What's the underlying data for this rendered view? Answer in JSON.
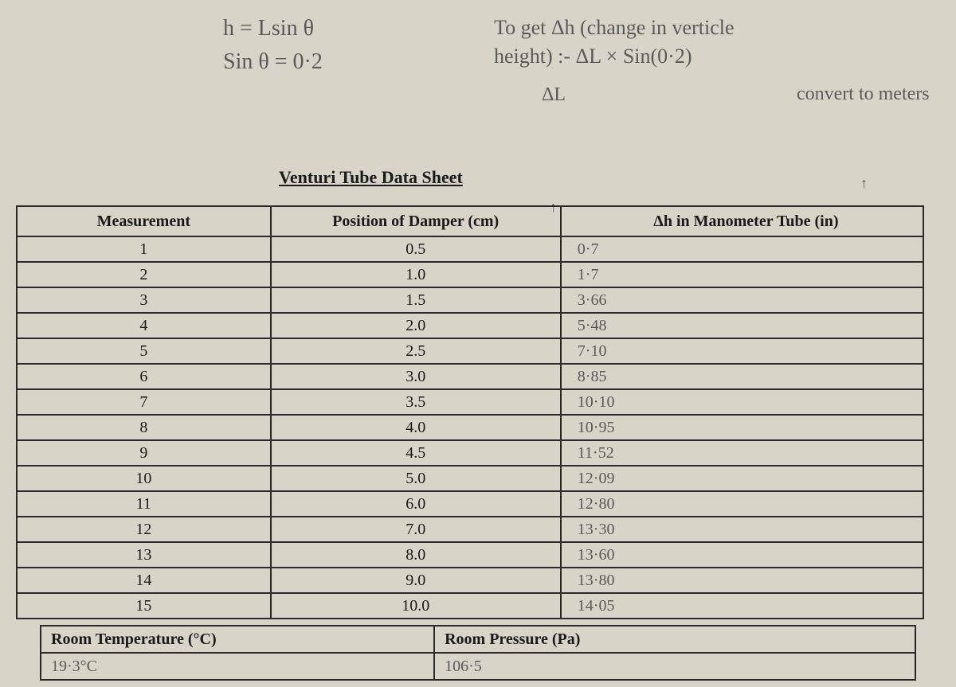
{
  "notes": {
    "top_left_1": "h = Lsin θ",
    "top_left_2": "Sin θ = 0·2",
    "top_right_1": "To get Δh (change in verticle",
    "top_right_2": "height) :- ΔL × Sin(0·2)",
    "top_right_3": "ΔL",
    "top_right_4": "convert to meters",
    "arrow_1": "↑",
    "arrow_2": "↑"
  },
  "title": "Venturi Tube Data Sheet",
  "table": {
    "headers": {
      "col1": "Measurement",
      "col2": "Position of Damper (cm)",
      "col3": "Δh in Manometer Tube (in)"
    },
    "rows": [
      {
        "measurement": "1",
        "position": "0.5",
        "delta": "0·7"
      },
      {
        "measurement": "2",
        "position": "1.0",
        "delta": "1·7"
      },
      {
        "measurement": "3",
        "position": "1.5",
        "delta": "3·66"
      },
      {
        "measurement": "4",
        "position": "2.0",
        "delta": "5·48"
      },
      {
        "measurement": "5",
        "position": "2.5",
        "delta": "7·10"
      },
      {
        "measurement": "6",
        "position": "3.0",
        "delta": "8·85"
      },
      {
        "measurement": "7",
        "position": "3.5",
        "delta": "10·10"
      },
      {
        "measurement": "8",
        "position": "4.0",
        "delta": "10·95"
      },
      {
        "measurement": "9",
        "position": "4.5",
        "delta": "11·52"
      },
      {
        "measurement": "10",
        "position": "5.0",
        "delta": "12·09"
      },
      {
        "measurement": "11",
        "position": "6.0",
        "delta": "12·80"
      },
      {
        "measurement": "12",
        "position": "7.0",
        "delta": "13·30"
      },
      {
        "measurement": "13",
        "position": "8.0",
        "delta": "13·60"
      },
      {
        "measurement": "14",
        "position": "9.0",
        "delta": "13·80"
      },
      {
        "measurement": "15",
        "position": "10.0",
        "delta": "14·05"
      }
    ]
  },
  "bottom": {
    "temp_label": "Room Temperature (°C)",
    "temp_value": "19·3°C",
    "pressure_label": "Room Pressure (Pa)",
    "pressure_value": "106·5"
  }
}
